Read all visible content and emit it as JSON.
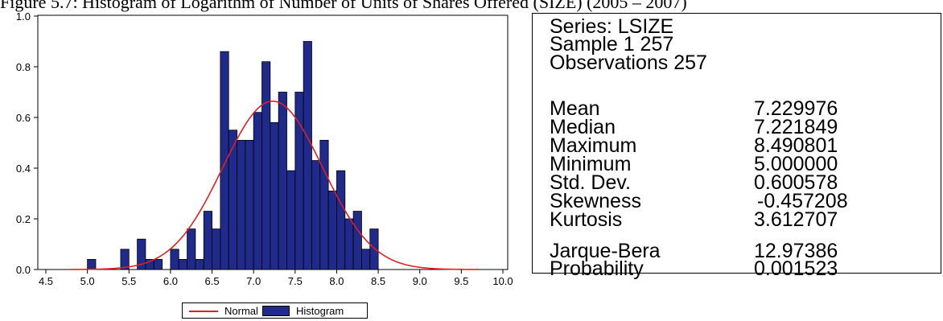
{
  "caption": "Figure 5.7: Histogram of Logarithm of Number of Units of Shares Offered (SIZE) (2005 – 2007)",
  "chart_data": {
    "type": "bar",
    "series": [
      {
        "name": "Histogram",
        "bin_width": 0.1,
        "bin_left_edges": [
          5.0,
          5.1,
          5.2,
          5.3,
          5.4,
          5.5,
          5.6,
          5.7,
          5.8,
          5.9,
          6.0,
          6.1,
          6.2,
          6.3,
          6.4,
          6.5,
          6.6,
          6.7,
          6.8,
          6.9,
          7.0,
          7.1,
          7.2,
          7.3,
          7.4,
          7.5,
          7.6,
          7.7,
          7.8,
          7.9,
          8.0,
          8.1,
          8.2,
          8.3,
          8.4
        ],
        "values": [
          0.04,
          0.0,
          0.0,
          0.0,
          0.08,
          0.0,
          0.12,
          0.04,
          0.04,
          0.0,
          0.08,
          0.04,
          0.16,
          0.04,
          0.23,
          0.16,
          0.86,
          0.55,
          0.51,
          0.51,
          0.62,
          0.82,
          0.58,
          0.7,
          0.39,
          0.7,
          0.9,
          0.43,
          0.51,
          0.31,
          0.39,
          0.2,
          0.23,
          0.08,
          0.16
        ],
        "color": "#1f2a8a"
      },
      {
        "name": "Normal",
        "mean": 7.229976,
        "sd": 0.600578,
        "x_range": [
          4.8,
          9.7
        ],
        "color": "#e31e24"
      }
    ],
    "xlim": [
      4.4,
      10.1
    ],
    "ylim": [
      0.0,
      1.0
    ],
    "xticks": [
      "4.5",
      "5.0",
      "5.5",
      "6.0",
      "6.5",
      "7.0",
      "7.5",
      "8.0",
      "8.5",
      "9.0",
      "9.5",
      "10.0"
    ],
    "xtick_values": [
      4.5,
      5.0,
      5.5,
      6.0,
      6.5,
      7.0,
      7.5,
      8.0,
      8.5,
      9.0,
      9.5,
      10.0
    ],
    "yticks": [
      "0.0",
      "0.2",
      "0.4",
      "0.6",
      "0.8",
      "1.0"
    ],
    "ytick_values": [
      0.0,
      0.2,
      0.4,
      0.6,
      0.8,
      1.0
    ],
    "legend": [
      "Normal",
      "Histogram"
    ],
    "legend_position": "bottom"
  },
  "stats": {
    "series_line": "Series: LSIZE",
    "sample_line": "Sample 1 257",
    "observations_line": "Observations 257",
    "rows": [
      {
        "label": "Mean",
        "value": "7.229976"
      },
      {
        "label": "Median",
        "value": "7.221849"
      },
      {
        "label": "Maximum",
        "value": "8.490801"
      },
      {
        "label": "Minimum",
        "value": "5.000000"
      },
      {
        "label": "Std. Dev.",
        "value": "0.600578"
      },
      {
        "label": "Skewness",
        "value": "-0.457208"
      },
      {
        "label": "Kurtosis",
        "value": "3.612707"
      }
    ],
    "tests": [
      {
        "label": "Jarque-Bera",
        "value": "12.97386"
      },
      {
        "label": "Probability",
        "value": "0.001523"
      }
    ]
  },
  "legend_labels": {
    "normal": "Normal",
    "histogram": "Histogram"
  }
}
